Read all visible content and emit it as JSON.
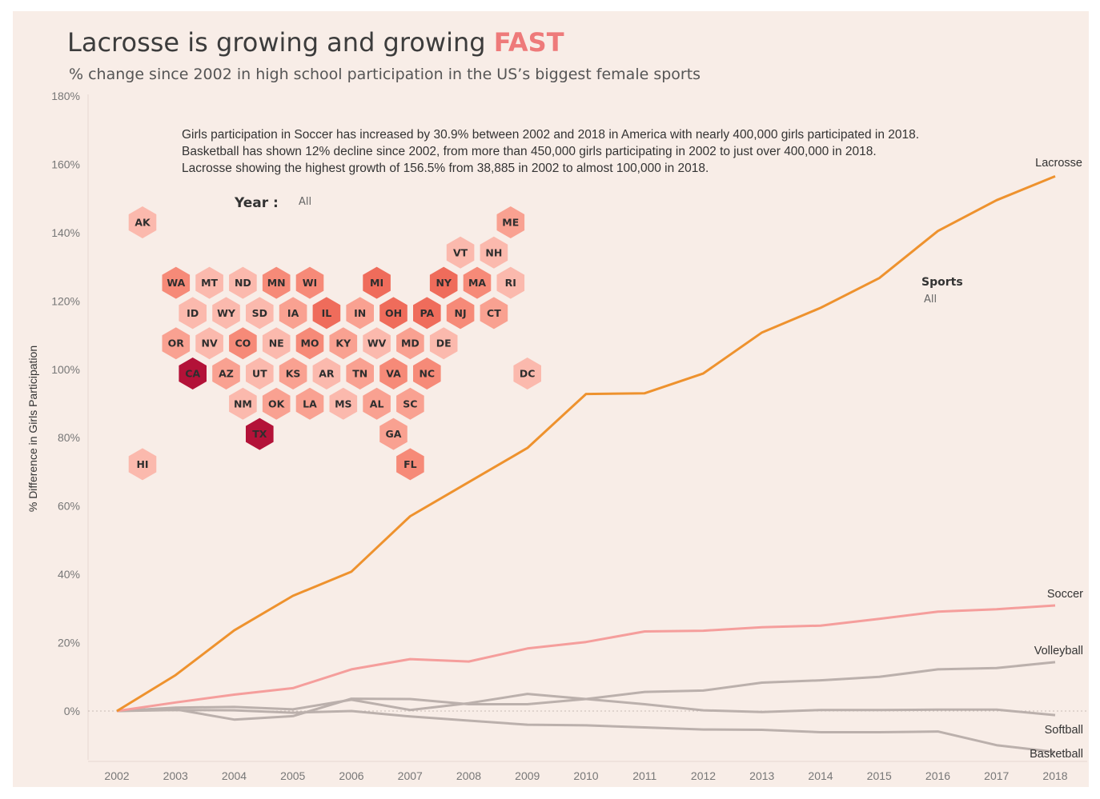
{
  "header": {
    "title": "Lacrosse is growing and growing",
    "title_accent": "FAST",
    "subtitle": "% change since 2002 in high school participation in the US’s biggest female sports"
  },
  "annotation": {
    "line1": "Girls participation in Soccer has increased by 30.9% between 2002 and 2018 in America with nearly 400,000 girls participated in 2018.",
    "line2": "Basketball has shown 12% decline since 2002, from more than 450,000 girls participating in 2002 to just over 400,000 in 2018.",
    "line3": "Lacrosse showing the highest growth of 156.5% from 38,885 in 2002 to almost 100,000 in 2018."
  },
  "filters": {
    "year_label": "Year :",
    "year_value": "All",
    "sports_label": "Sports",
    "sports_value": "All"
  },
  "colors": {
    "accent": "#ee7a7a",
    "lacrosse": "#ee922e",
    "soccer": "#f59e9c",
    "others": "#bbb0ac",
    "background": "#f8ede7"
  },
  "chart_data": {
    "type": "line",
    "ylabel": "% Difference in Girls Participation",
    "xlabel": "",
    "x": [
      2002,
      2003,
      2004,
      2005,
      2006,
      2007,
      2008,
      2009,
      2010,
      2011,
      2012,
      2013,
      2014,
      2015,
      2016,
      2017,
      2018
    ],
    "ylim": [
      -15,
      180
    ],
    "yticks": [
      0,
      20,
      40,
      60,
      80,
      100,
      120,
      140,
      160,
      180
    ],
    "ytick_labels": [
      "0%",
      "20%",
      "40%",
      "60%",
      "80%",
      "100%",
      "120%",
      "140%",
      "160%",
      "180%"
    ],
    "series": [
      {
        "name": "Lacrosse",
        "color": "#ee922e",
        "values": [
          0,
          10.5,
          23.6,
          33.7,
          40.8,
          57.0,
          67.0,
          77.0,
          92.8,
          93.0,
          98.8,
          110.8,
          118.0,
          126.7,
          140.5,
          149.5,
          156.5
        ]
      },
      {
        "name": "Soccer",
        "color": "#f59e9c",
        "values": [
          0,
          2.5,
          4.8,
          6.7,
          12.2,
          15.2,
          14.5,
          18.3,
          20.2,
          23.3,
          23.5,
          24.5,
          25.0,
          27.0,
          29.1,
          29.8,
          30.9
        ]
      },
      {
        "name": "Volleyball",
        "color": "#bbb0ac",
        "values": [
          0,
          0.5,
          -2.5,
          -1.5,
          3.6,
          3.5,
          2.0,
          2.0,
          3.5,
          5.6,
          6.0,
          8.3,
          9.0,
          10.0,
          12.2,
          12.6,
          14.3
        ]
      },
      {
        "name": "Softball",
        "color": "#bbb0ac",
        "values": [
          0,
          1.0,
          1.2,
          0.5,
          3.3,
          0.3,
          2.3,
          5.0,
          3.5,
          2.0,
          0.2,
          -0.3,
          0.3,
          0.3,
          0.4,
          0.4,
          -1.2
        ]
      },
      {
        "name": "Basketball",
        "color": "#bbb0ac",
        "values": [
          0,
          0.3,
          0.2,
          -0.5,
          0.0,
          -1.6,
          -2.8,
          -4.0,
          -4.2,
          -4.8,
          -5.4,
          -5.5,
          -6.2,
          -6.2,
          -6.0,
          -10.0,
          -12.0
        ]
      }
    ],
    "series_label_text": {
      "Lacrosse": "Lacrosse",
      "Soccer": "Soccer",
      "Volleyball": "Volleyball",
      "Softball": "Softball",
      "Basketball": "Basketball"
    }
  },
  "hex_map": {
    "title": "",
    "scale_colors": [
      "#fbb9ad",
      "#f9a191",
      "#f68a78",
      "#ef6c5b",
      "#de4a4c",
      "#b31238"
    ],
    "states": [
      {
        "code": "AK",
        "col": 0,
        "row": 0,
        "level": 0
      },
      {
        "code": "ME",
        "col": 11,
        "row": 0,
        "level": 1
      },
      {
        "code": "VT",
        "col": 9.5,
        "row": 1,
        "level": 0
      },
      {
        "code": "NH",
        "col": 10.5,
        "row": 1,
        "level": 0
      },
      {
        "code": "WA",
        "col": 1,
        "row": 2,
        "level": 2
      },
      {
        "code": "MT",
        "col": 2,
        "row": 2,
        "level": 0
      },
      {
        "code": "ND",
        "col": 3,
        "row": 2,
        "level": 0
      },
      {
        "code": "MN",
        "col": 4,
        "row": 2,
        "level": 2
      },
      {
        "code": "WI",
        "col": 5,
        "row": 2,
        "level": 2
      },
      {
        "code": "MI",
        "col": 7,
        "row": 2,
        "level": 3
      },
      {
        "code": "NY",
        "col": 9,
        "row": 2,
        "level": 3
      },
      {
        "code": "MA",
        "col": 10,
        "row": 2,
        "level": 2
      },
      {
        "code": "RI",
        "col": 11,
        "row": 2,
        "level": 0
      },
      {
        "code": "ID",
        "col": 1.5,
        "row": 3,
        "level": 0
      },
      {
        "code": "WY",
        "col": 2.5,
        "row": 3,
        "level": 0
      },
      {
        "code": "SD",
        "col": 3.5,
        "row": 3,
        "level": 0
      },
      {
        "code": "IA",
        "col": 4.5,
        "row": 3,
        "level": 1
      },
      {
        "code": "IL",
        "col": 5.5,
        "row": 3,
        "level": 3
      },
      {
        "code": "IN",
        "col": 6.5,
        "row": 3,
        "level": 1
      },
      {
        "code": "OH",
        "col": 7.5,
        "row": 3,
        "level": 3
      },
      {
        "code": "PA",
        "col": 8.5,
        "row": 3,
        "level": 3
      },
      {
        "code": "NJ",
        "col": 9.5,
        "row": 3,
        "level": 2
      },
      {
        "code": "CT",
        "col": 10.5,
        "row": 3,
        "level": 1
      },
      {
        "code": "OR",
        "col": 1,
        "row": 4,
        "level": 1
      },
      {
        "code": "NV",
        "col": 2,
        "row": 4,
        "level": 0
      },
      {
        "code": "CO",
        "col": 3,
        "row": 4,
        "level": 2
      },
      {
        "code": "NE",
        "col": 4,
        "row": 4,
        "level": 0
      },
      {
        "code": "MO",
        "col": 5,
        "row": 4,
        "level": 2
      },
      {
        "code": "KY",
        "col": 6,
        "row": 4,
        "level": 1
      },
      {
        "code": "WV",
        "col": 7,
        "row": 4,
        "level": 0
      },
      {
        "code": "MD",
        "col": 8,
        "row": 4,
        "level": 1
      },
      {
        "code": "DE",
        "col": 9,
        "row": 4,
        "level": 0
      },
      {
        "code": "CA",
        "col": 1.5,
        "row": 5,
        "level": 5
      },
      {
        "code": "AZ",
        "col": 2.5,
        "row": 5,
        "level": 1
      },
      {
        "code": "UT",
        "col": 3.5,
        "row": 5,
        "level": 0
      },
      {
        "code": "KS",
        "col": 4.5,
        "row": 5,
        "level": 1
      },
      {
        "code": "AR",
        "col": 5.5,
        "row": 5,
        "level": 0
      },
      {
        "code": "TN",
        "col": 6.5,
        "row": 5,
        "level": 1
      },
      {
        "code": "VA",
        "col": 7.5,
        "row": 5,
        "level": 2
      },
      {
        "code": "NC",
        "col": 8.5,
        "row": 5,
        "level": 2
      },
      {
        "code": "DC",
        "col": 11.5,
        "row": 5,
        "level": 0
      },
      {
        "code": "NM",
        "col": 3,
        "row": 6,
        "level": 0
      },
      {
        "code": "OK",
        "col": 4,
        "row": 6,
        "level": 1
      },
      {
        "code": "LA",
        "col": 5,
        "row": 6,
        "level": 1
      },
      {
        "code": "MS",
        "col": 6,
        "row": 6,
        "level": 0
      },
      {
        "code": "AL",
        "col": 7,
        "row": 6,
        "level": 1
      },
      {
        "code": "SC",
        "col": 8,
        "row": 6,
        "level": 1
      },
      {
        "code": "TX",
        "col": 3.5,
        "row": 7,
        "level": 5
      },
      {
        "code": "GA",
        "col": 7.5,
        "row": 7,
        "level": 1
      },
      {
        "code": "HI",
        "col": 0,
        "row": 8,
        "level": 0
      },
      {
        "code": "FL",
        "col": 8,
        "row": 8,
        "level": 2
      }
    ]
  }
}
